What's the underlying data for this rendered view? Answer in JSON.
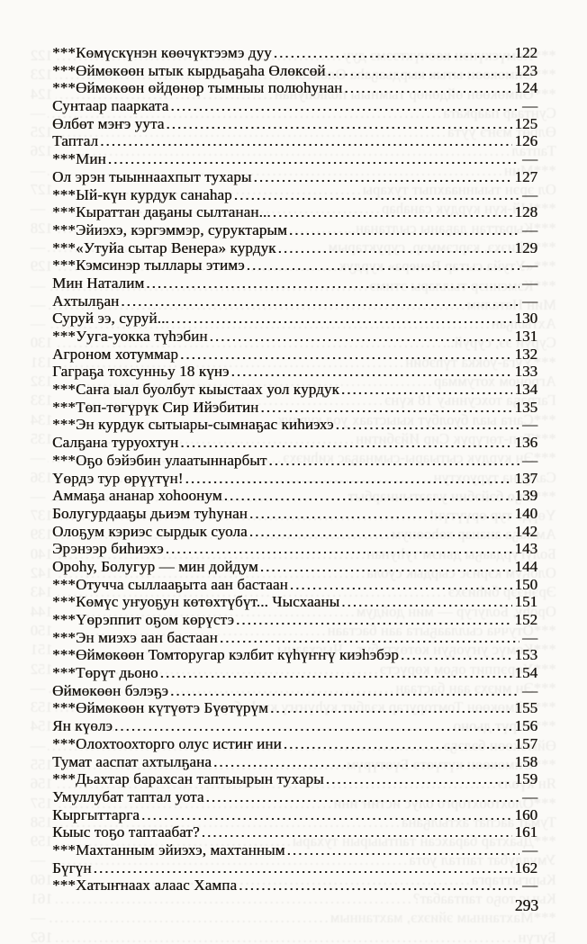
{
  "page": {
    "number": "293"
  },
  "colors": {
    "paper": "#fbfaf7",
    "ink": "#191510"
  },
  "toc": {
    "entries": [
      {
        "title": "***Көмүскүнэн көөчүктээмэ дуу",
        "page": "122"
      },
      {
        "title": "***Өймөкөөн ытык кырдьаҕаһа Өлөксөй",
        "page": "123"
      },
      {
        "title": "***Өймөкөөн өйдөнөр тымныы полюһунан",
        "page": "124"
      },
      {
        "title": "Сунтаар паарката",
        "page": "—"
      },
      {
        "title": "Өлбөт мэҥэ уута",
        "page": "125"
      },
      {
        "title": "Таптал",
        "page": "126"
      },
      {
        "title": "***Мин",
        "page": "—"
      },
      {
        "title": "Ол эрэн тыыннаахпыт тухары",
        "page": "127"
      },
      {
        "title": "***Ый-күн курдук санаһар",
        "page": "—"
      },
      {
        "title": "***Кыраттан даҕаны сылтанан...",
        "page": "128"
      },
      {
        "title": "***Эйиэхэ, кэргэммэр, суруктарым",
        "page": "—"
      },
      {
        "title": "***«Утуйа сытар Венера» курдук",
        "page": "129"
      },
      {
        "title": "***Кэмсинэр тыллары этимэ",
        "page": "—"
      },
      {
        "title": "Мин Наталим",
        "page": "—"
      },
      {
        "title": "Ахтылҕан",
        "page": "—"
      },
      {
        "title": "Суруй ээ, суруй...",
        "page": "130"
      },
      {
        "title": "***Ууга-уокка түһэбин",
        "page": "131"
      },
      {
        "title": "Агроном хотуммар",
        "page": "132"
      },
      {
        "title": "Гаграҕа тохсунньу 18 күнэ",
        "page": "133"
      },
      {
        "title": "***Саҥа ыал буолбут кыыстаах уол курдук",
        "page": "134"
      },
      {
        "title": "***Төп-төгүрүк Сир Ийэбитин",
        "page": "135"
      },
      {
        "title": "***Эн курдук сытыары-сымнаҕас киһиэхэ",
        "page": "—"
      },
      {
        "title": "Салҕана туруохтун",
        "page": "136"
      },
      {
        "title": "***Оҕо бэйэбин улаатыннарбыт",
        "page": "—"
      },
      {
        "title": "Үөрдэ тур өрүүтүн!",
        "page": "137"
      },
      {
        "title": "Аммаҕа ананар хоһоонум",
        "page": "139"
      },
      {
        "title": "Болугурдааҕы дьиэм туһунан",
        "page": "140"
      },
      {
        "title": "Олоҕум кэриэс сырдык суола",
        "page": "142"
      },
      {
        "title": "Эрэнээр биһиэхэ",
        "page": "143"
      },
      {
        "title": "Ороһу, Болугур — мин дойдум",
        "page": "144"
      },
      {
        "title": "***Отучча сыллааҕыта аан бастаан",
        "page": "150"
      },
      {
        "title": "***Көмүс уҥуоҕун көтөхтүбүт... Чысхааны",
        "page": "151"
      },
      {
        "title": "***Үөрэппит оҕом көрүстэ",
        "page": "152"
      },
      {
        "title": "***Эн миэхэ аан бастаан",
        "page": "—"
      },
      {
        "title": "***Өймөкөөн Томторугар кэлбит күһүҥҥү киэһэбэр",
        "page": "153"
      },
      {
        "title": "***Төрүт дьоно",
        "page": "154"
      },
      {
        "title": "Өймөкөөн бэлэҕэ",
        "page": "—"
      },
      {
        "title": "***Өймөкөөн күтүөтэ Бүөтүрүм",
        "page": "155"
      },
      {
        "title": "Ян күөлэ",
        "page": "156"
      },
      {
        "title": "***Олохтоохторго олус истиҥ ини",
        "page": "157"
      },
      {
        "title": "Тумат ааспат ахтылҕана",
        "page": "158"
      },
      {
        "title": "***Дьахтар барахсан таптыырын тухары",
        "page": "159"
      },
      {
        "title": "Умуллубат таптал уота",
        "page": "—"
      },
      {
        "title": "Кыргыттарга",
        "page": "160"
      },
      {
        "title": "Кыыс тоҕо таптаабат?",
        "page": "161"
      },
      {
        "title": "***Махтанным эйиэхэ, махтанным",
        "page": "—"
      },
      {
        "title": "Бүгүн",
        "page": "162"
      },
      {
        "title": "***Хатыҥнаах алаас Хампа",
        "page": "—"
      }
    ]
  }
}
